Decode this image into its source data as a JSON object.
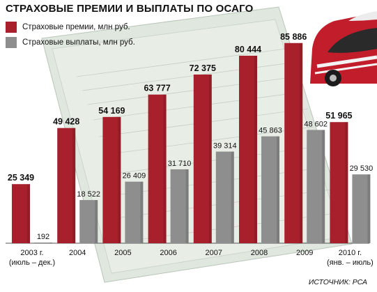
{
  "title": "СТРАХОВЫЕ ПРЕМИИ И ВЫПЛАТЫ ПО ОСАГО",
  "source": "ИСТОЧНИК: РСА",
  "colors": {
    "premiums": "#a8202c",
    "payouts": "#8e8e8e"
  },
  "chart_data": {
    "type": "bar",
    "title": "СТРАХОВЫЕ ПРЕМИИ И ВЫПЛАТЫ ПО ОСАГО",
    "categories": [
      [
        "2003 г.",
        "(июль – дек.)"
      ],
      [
        "2004"
      ],
      [
        "2005"
      ],
      [
        "2006"
      ],
      [
        "2007"
      ],
      [
        "2008"
      ],
      [
        "2009"
      ],
      [
        "2010 г.",
        "(янв. – июль)"
      ]
    ],
    "series": [
      {
        "name": "Страховые премии, млн руб.",
        "values": [
          25349,
          49428,
          54169,
          63777,
          72375,
          80444,
          85886,
          51965
        ],
        "labels": [
          "25 349",
          "49 428",
          "54 169",
          "63 777",
          "72 375",
          "80 444",
          "85 886",
          "51 965"
        ]
      },
      {
        "name": "Страховые выплаты, млн руб.",
        "values": [
          192,
          18522,
          26409,
          31710,
          39314,
          45863,
          48602,
          29530
        ],
        "labels": [
          "192",
          "18 522",
          "26 409",
          "31 710",
          "39 314",
          "45 863",
          "48 602",
          "29 530"
        ]
      }
    ],
    "ylim": [
      0,
      90000
    ],
    "legend_position": "top-left"
  }
}
